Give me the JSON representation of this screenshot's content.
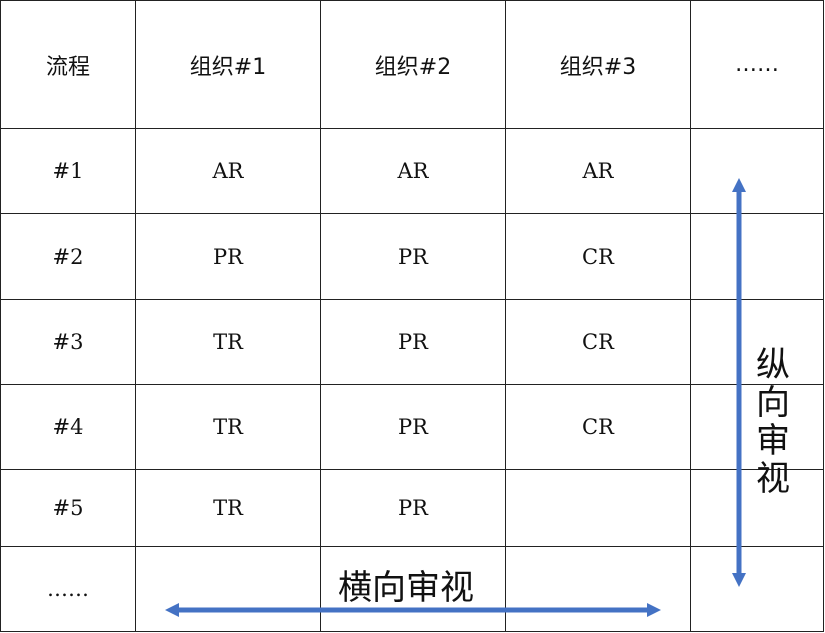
{
  "table": {
    "headers": [
      "流程",
      "组织#1",
      "组织#2",
      "组织#3",
      "……"
    ],
    "rows": [
      [
        "#1",
        "AR",
        "AR",
        "AR",
        ""
      ],
      [
        "#2",
        "PR",
        "PR",
        "CR",
        ""
      ],
      [
        "#3",
        "TR",
        "PR",
        "CR",
        ""
      ],
      [
        "#4",
        "TR",
        "PR",
        "CR",
        ""
      ],
      [
        "#5",
        "TR",
        "PR",
        "",
        ""
      ],
      [
        "……",
        "",
        "",
        "",
        ""
      ]
    ]
  },
  "annotations": {
    "vertical_review": "纵向审视",
    "horizontal_review": "横向审视",
    "arrow_color": "#4472C4"
  }
}
